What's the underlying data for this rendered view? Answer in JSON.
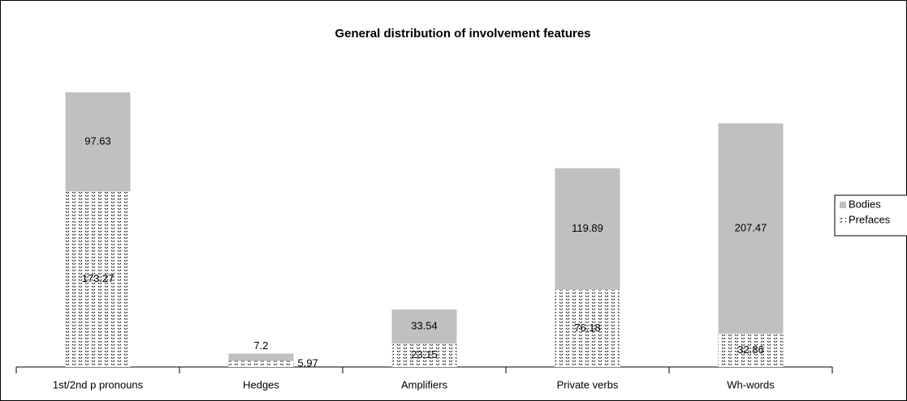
{
  "chart_data": {
    "type": "stacked_bar",
    "title": "General distribution of involvement features",
    "categories": [
      "1st/2nd p pronouns",
      "Hedges",
      "Amplifiers",
      "Private verbs",
      "Wh-words"
    ],
    "series": [
      {
        "name": "Prefaces",
        "color": "#000000",
        "values": [
          173.27,
          5.97,
          23.15,
          76.18,
          32.86
        ]
      },
      {
        "name": "Bodies",
        "color": "#c0c0c0",
        "values": [
          97.63,
          7.2,
          33.54,
          119.89,
          207.47
        ]
      }
    ],
    "legend": "right"
  }
}
